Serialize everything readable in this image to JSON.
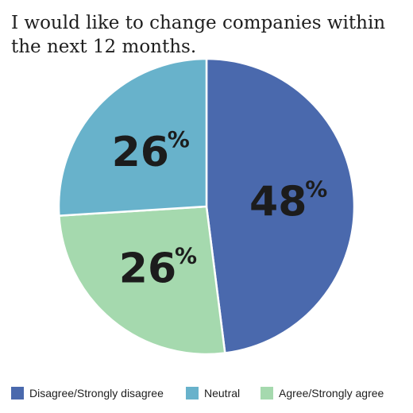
{
  "chart_data": {
    "type": "pie",
    "title": "I would like to change companies within the next 12 months.",
    "slices": [
      {
        "name": "Disagree/Strongly disagree",
        "value": 48,
        "label": "48",
        "suffix": "%",
        "color": "#4a69ad"
      },
      {
        "name": "Agree/Strongly agree",
        "value": 26,
        "label": "26",
        "suffix": "%",
        "color": "#a5d9ae"
      },
      {
        "name": "Neutral",
        "value": 26,
        "label": "26",
        "suffix": "%",
        "color": "#68b2cb"
      }
    ],
    "legend": [
      {
        "label": "Disagree/Strongly disagree",
        "color": "#4a69ad"
      },
      {
        "label": "Neutral",
        "color": "#68b2cb"
      },
      {
        "label": "Agree/Strongly agree",
        "color": "#a5d9ae"
      }
    ],
    "legend_position": "bottom"
  }
}
